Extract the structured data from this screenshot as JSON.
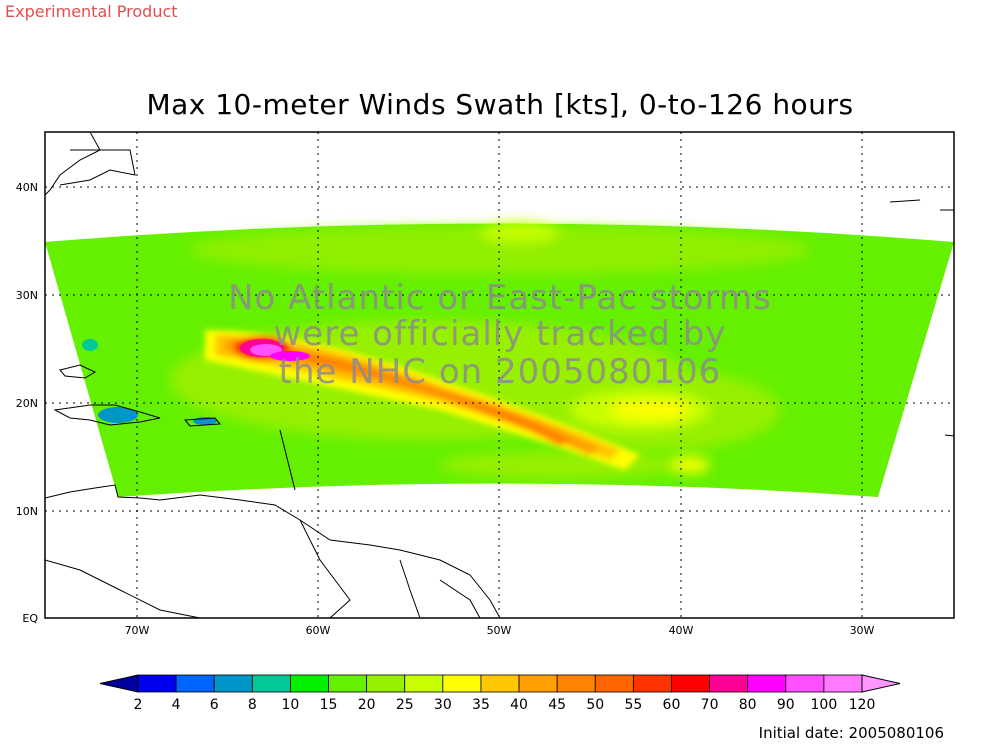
{
  "header": {
    "experimental_label": "Experimental Product",
    "title": "Max 10-meter Winds Swath [kts], 0-to-126 hours"
  },
  "map": {
    "lat_labels": [
      "EQ",
      "10N",
      "20N",
      "30N",
      "40N"
    ],
    "lon_labels": [
      "70W",
      "60W",
      "50W",
      "40W",
      "30W"
    ],
    "overlay_lines": [
      "No Atlantic or East-Pac storms",
      "were officially tracked by",
      "the NHC on 2005080106"
    ]
  },
  "legend": {
    "levels": [
      "2",
      "4",
      "6",
      "8",
      "10",
      "15",
      "20",
      "25",
      "30",
      "35",
      "40",
      "45",
      "50",
      "55",
      "60",
      "70",
      "80",
      "90",
      "100",
      "120"
    ],
    "colors": [
      "#00009e",
      "#0000f0",
      "#0064ff",
      "#0096c8",
      "#00c896",
      "#00f000",
      "#64f000",
      "#96f000",
      "#c8ff00",
      "#ffff00",
      "#ffc800",
      "#ffa000",
      "#ff8200",
      "#ff6400",
      "#ff3200",
      "#ff0000",
      "#ff0096",
      "#ff00ff",
      "#ff50ff",
      "#ff7aff",
      "#ff96ff"
    ]
  },
  "footer": {
    "initial_date": "Initial date: 2005080106"
  }
}
